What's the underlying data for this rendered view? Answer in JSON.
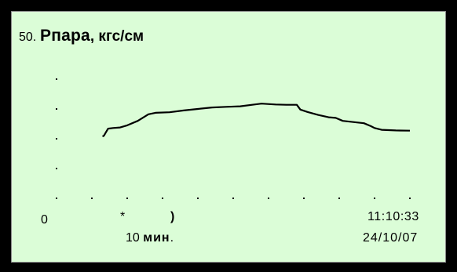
{
  "screen": {
    "param_number": "50.",
    "param_name": "Pпара",
    "param_unit": ", кгс/см"
  },
  "chart_data": {
    "type": "line",
    "title": "Pпара, кгс/см",
    "x_axis": {
      "start_label": "0",
      "mid_label_1": "*",
      "mid_label_2": ")",
      "span_value": "10",
      "span_unit": "мин",
      "span_suffix": "."
    },
    "end_time": "11:10:33",
    "end_date": "24/10/07",
    "x_minutes_ago_range": [
      50,
      0
    ],
    "y_range": [
      0,
      4
    ],
    "series": [
      {
        "values": [
          {
            "x": 43.5,
            "y": 2.08
          },
          {
            "x": 43.3,
            "y": 2.1
          },
          {
            "x": 43.0,
            "y": 2.22
          },
          {
            "x": 42.7,
            "y": 2.34
          },
          {
            "x": 42.0,
            "y": 2.36
          },
          {
            "x": 41.0,
            "y": 2.38
          },
          {
            "x": 40.0,
            "y": 2.45
          },
          {
            "x": 38.5,
            "y": 2.6
          },
          {
            "x": 37.0,
            "y": 2.82
          },
          {
            "x": 36.0,
            "y": 2.87
          },
          {
            "x": 34.0,
            "y": 2.89
          },
          {
            "x": 32.0,
            "y": 2.95
          },
          {
            "x": 30.0,
            "y": 3.0
          },
          {
            "x": 28.0,
            "y": 3.05
          },
          {
            "x": 26.0,
            "y": 3.07
          },
          {
            "x": 24.0,
            "y": 3.09
          },
          {
            "x": 22.0,
            "y": 3.15
          },
          {
            "x": 21.0,
            "y": 3.18
          },
          {
            "x": 19.0,
            "y": 3.15
          },
          {
            "x": 17.5,
            "y": 3.14
          },
          {
            "x": 16.0,
            "y": 3.14
          },
          {
            "x": 15.5,
            "y": 2.98
          },
          {
            "x": 14.5,
            "y": 2.9
          },
          {
            "x": 13.0,
            "y": 2.8
          },
          {
            "x": 11.5,
            "y": 2.72
          },
          {
            "x": 10.5,
            "y": 2.7
          },
          {
            "x": 9.5,
            "y": 2.6
          },
          {
            "x": 8.0,
            "y": 2.56
          },
          {
            "x": 6.5,
            "y": 2.52
          },
          {
            "x": 5.5,
            "y": 2.42
          },
          {
            "x": 5.0,
            "y": 2.36
          },
          {
            "x": 4.0,
            "y": 2.3
          },
          {
            "x": 2.0,
            "y": 2.28
          },
          {
            "x": 0.0,
            "y": 2.27
          }
        ]
      }
    ],
    "grid": "dotted",
    "line_color": "#000000"
  }
}
